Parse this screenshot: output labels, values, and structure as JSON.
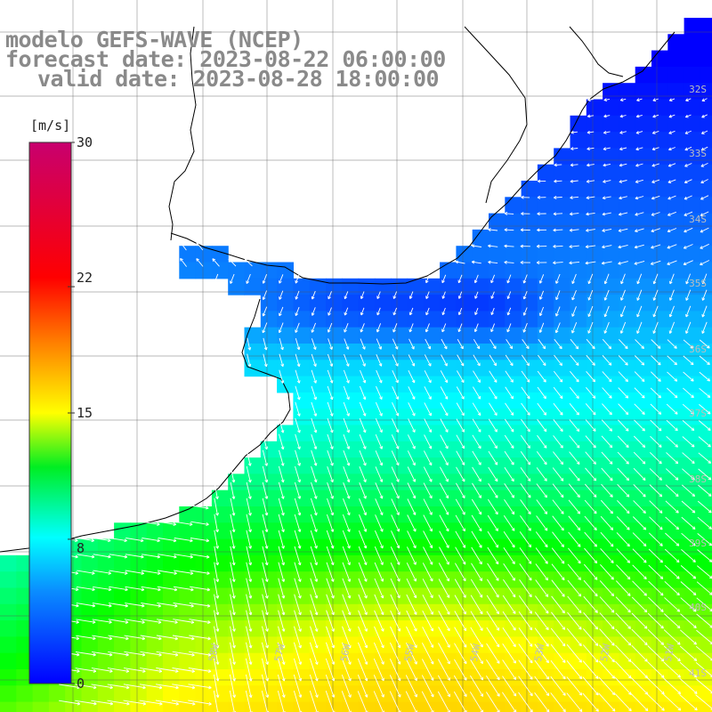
{
  "header": {
    "line1": "modelo GEFS-WAVE (NCEP)",
    "line2": "forecast date: 2023-08-22 06:00:00",
    "line3": "valid date: 2023-08-28 18:00:00"
  },
  "colorbar": {
    "units": "[m/s]",
    "ticks": [
      "30",
      "22",
      "15",
      "8",
      "0"
    ],
    "tick_values": [
      30,
      22,
      15,
      8,
      0
    ],
    "range": [
      0,
      30
    ],
    "colors": [
      "#0000ff",
      "#0a8cff",
      "#00ffff",
      "#00ff00",
      "#ffff00",
      "#ff7f00",
      "#ff0000",
      "#c8006e"
    ]
  },
  "map": {
    "field": "wind speed",
    "units": "m/s",
    "grid_lines": true,
    "vector_color": "#ffffff",
    "land_color": "#ffffff",
    "coast_color": "#000000",
    "lat_labels": [
      "32S",
      "33S",
      "34S",
      "35S",
      "36S",
      "37S",
      "38S",
      "39S",
      "40S",
      "41S"
    ],
    "lon_labels": [
      "58W",
      "57W",
      "56W",
      "55W",
      "54W",
      "53W",
      "52W",
      "51W"
    ]
  }
}
